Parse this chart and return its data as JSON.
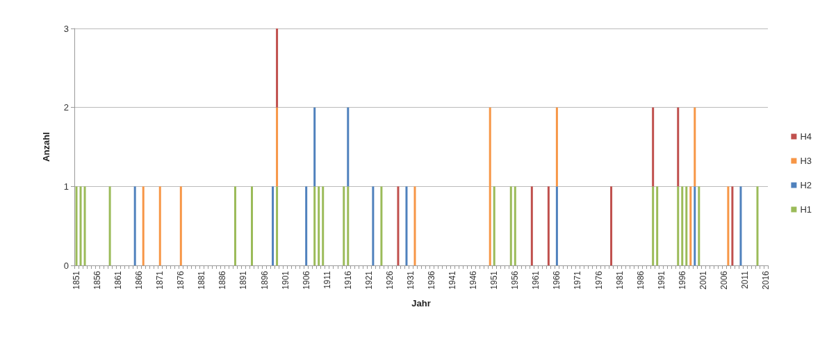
{
  "chart_data": {
    "type": "bar",
    "stacked": true,
    "xlabel": "Jahr",
    "ylabel": "Anzahl",
    "categories": [
      "1851",
      null,
      null,
      null,
      null,
      "1856",
      null,
      null,
      null,
      null,
      "1861",
      null,
      null,
      null,
      null,
      "1866",
      null,
      null,
      null,
      null,
      "1871",
      null,
      null,
      null,
      null,
      "1876",
      null,
      null,
      null,
      null,
      "1881",
      null,
      null,
      null,
      null,
      "1886",
      null,
      null,
      null,
      null,
      "1891",
      null,
      null,
      null,
      null,
      "1896",
      null,
      null,
      null,
      null,
      "1901",
      null,
      null,
      null,
      null,
      "1906",
      null,
      null,
      null,
      null,
      "1911",
      null,
      null,
      null,
      null,
      "1916",
      null,
      null,
      null,
      null,
      "1921",
      null,
      null,
      null,
      null,
      "1926",
      null,
      null,
      null,
      null,
      "1931",
      null,
      null,
      null,
      null,
      "1936",
      null,
      null,
      null,
      null,
      "1941",
      null,
      null,
      null,
      null,
      "1946",
      null,
      null,
      null,
      null,
      "1951",
      null,
      null,
      null,
      null,
      "1956",
      null,
      null,
      null,
      null,
      "1961",
      null,
      null,
      null,
      null,
      "1966",
      null,
      null,
      null,
      null,
      "1971",
      null,
      null,
      null,
      null,
      "1976",
      null,
      null,
      null,
      null,
      "1981",
      null,
      null,
      null,
      null,
      "1986",
      null,
      null,
      null,
      null,
      "1991",
      null,
      null,
      null,
      null,
      "1996",
      null,
      null,
      null,
      null,
      "2001",
      null,
      null,
      null,
      null,
      "2006",
      null,
      null,
      null,
      null,
      "2011",
      null,
      null,
      null,
      null,
      "2016"
    ],
    "series": [
      {
        "name": "H1",
        "color": "#9bbb59",
        "values": [
          1,
          1,
          1,
          0,
          0,
          0,
          0,
          0,
          1,
          0,
          0,
          0,
          0,
          0,
          0,
          0,
          0,
          0,
          0,
          0,
          0,
          0,
          0,
          0,
          0,
          0,
          0,
          0,
          0,
          0,
          0,
          0,
          0,
          0,
          0,
          0,
          0,
          0,
          1,
          0,
          0,
          0,
          1,
          0,
          0,
          0,
          0,
          0,
          1,
          0,
          0,
          0,
          0,
          0,
          0,
          0,
          0,
          1,
          1,
          1,
          0,
          0,
          0,
          0,
          1,
          1,
          0,
          0,
          0,
          0,
          0,
          0,
          0,
          1,
          0,
          0,
          0,
          0,
          0,
          0,
          0,
          0,
          0,
          0,
          0,
          0,
          0,
          0,
          0,
          0,
          0,
          0,
          0,
          0,
          0,
          0,
          0,
          0,
          0,
          0,
          1,
          0,
          0,
          0,
          1,
          1,
          0,
          0,
          0,
          0,
          0,
          0,
          0,
          0,
          0,
          0,
          0,
          0,
          0,
          0,
          0,
          0,
          0,
          0,
          0,
          0,
          0,
          0,
          0,
          0,
          0,
          0,
          0,
          0,
          0,
          0,
          0,
          0,
          1,
          1,
          0,
          0,
          0,
          0,
          1,
          1,
          1,
          0,
          0,
          1,
          0,
          0,
          0,
          0,
          0,
          0,
          0,
          0,
          0,
          0,
          0,
          0,
          0,
          1,
          0,
          0
        ]
      },
      {
        "name": "H2",
        "color": "#4f81bd",
        "values": [
          0,
          0,
          0,
          0,
          0,
          0,
          0,
          0,
          0,
          0,
          0,
          0,
          0,
          0,
          1,
          0,
          0,
          0,
          0,
          0,
          0,
          0,
          0,
          0,
          0,
          0,
          0,
          0,
          0,
          0,
          0,
          0,
          0,
          0,
          0,
          0,
          0,
          0,
          0,
          0,
          0,
          0,
          0,
          0,
          0,
          0,
          0,
          1,
          0,
          0,
          0,
          0,
          0,
          0,
          0,
          1,
          0,
          1,
          0,
          0,
          0,
          0,
          0,
          0,
          0,
          1,
          0,
          0,
          0,
          0,
          0,
          1,
          0,
          0,
          0,
          0,
          0,
          0,
          0,
          1,
          0,
          0,
          0,
          0,
          0,
          0,
          0,
          0,
          0,
          0,
          0,
          0,
          0,
          0,
          0,
          0,
          0,
          0,
          0,
          0,
          0,
          0,
          0,
          0,
          0,
          0,
          0,
          0,
          0,
          0,
          0,
          0,
          0,
          0,
          0,
          1,
          0,
          0,
          0,
          0,
          0,
          0,
          0,
          0,
          0,
          0,
          0,
          0,
          0,
          0,
          0,
          0,
          0,
          0,
          0,
          0,
          0,
          0,
          0,
          0,
          0,
          0,
          0,
          0,
          0,
          0,
          0,
          0,
          1,
          0,
          0,
          0,
          0,
          0,
          0,
          0,
          0,
          0,
          0,
          1,
          0,
          0,
          0,
          0,
          0,
          0
        ]
      },
      {
        "name": "H3",
        "color": "#f79646",
        "values": [
          0,
          0,
          0,
          0,
          0,
          0,
          0,
          0,
          0,
          0,
          0,
          0,
          0,
          0,
          0,
          0,
          1,
          0,
          0,
          0,
          1,
          0,
          0,
          0,
          0,
          1,
          0,
          0,
          0,
          0,
          0,
          0,
          0,
          0,
          0,
          0,
          0,
          0,
          0,
          0,
          0,
          0,
          0,
          0,
          0,
          0,
          0,
          0,
          1,
          0,
          0,
          0,
          0,
          0,
          0,
          0,
          0,
          0,
          0,
          0,
          0,
          0,
          0,
          0,
          0,
          0,
          0,
          0,
          0,
          0,
          0,
          0,
          0,
          0,
          0,
          0,
          0,
          0,
          0,
          0,
          0,
          1,
          0,
          0,
          0,
          0,
          0,
          0,
          0,
          0,
          0,
          0,
          0,
          0,
          0,
          0,
          0,
          0,
          0,
          2,
          0,
          0,
          0,
          0,
          0,
          0,
          0,
          0,
          0,
          0,
          0,
          0,
          0,
          0,
          0,
          1,
          0,
          0,
          0,
          0,
          0,
          0,
          0,
          0,
          0,
          0,
          0,
          0,
          0,
          0,
          0,
          0,
          0,
          0,
          0,
          0,
          0,
          0,
          0,
          0,
          0,
          0,
          0,
          0,
          0,
          0,
          0,
          1,
          1,
          0,
          0,
          0,
          0,
          0,
          0,
          0,
          1,
          0,
          0,
          0,
          0,
          0,
          0,
          0,
          0,
          0
        ]
      },
      {
        "name": "H4",
        "color": "#c0504d",
        "values": [
          0,
          0,
          0,
          0,
          0,
          0,
          0,
          0,
          0,
          0,
          0,
          0,
          0,
          0,
          0,
          0,
          0,
          0,
          0,
          0,
          0,
          0,
          0,
          0,
          0,
          0,
          0,
          0,
          0,
          0,
          0,
          0,
          0,
          0,
          0,
          0,
          0,
          0,
          0,
          0,
          0,
          0,
          0,
          0,
          0,
          0,
          0,
          0,
          1,
          0,
          0,
          0,
          0,
          0,
          0,
          0,
          0,
          0,
          0,
          0,
          0,
          0,
          0,
          0,
          0,
          0,
          0,
          0,
          0,
          0,
          0,
          0,
          0,
          0,
          0,
          0,
          0,
          1,
          0,
          0,
          0,
          0,
          0,
          0,
          0,
          0,
          0,
          0,
          0,
          0,
          0,
          0,
          0,
          0,
          0,
          0,
          0,
          0,
          0,
          0,
          0,
          0,
          0,
          0,
          0,
          0,
          0,
          0,
          0,
          1,
          0,
          0,
          0,
          1,
          0,
          0,
          0,
          0,
          0,
          0,
          0,
          0,
          0,
          0,
          0,
          0,
          0,
          0,
          1,
          0,
          0,
          0,
          0,
          0,
          0,
          0,
          0,
          0,
          1,
          0,
          0,
          0,
          0,
          0,
          1,
          0,
          0,
          0,
          0,
          0,
          0,
          0,
          0,
          0,
          0,
          0,
          0,
          1,
          0,
          0,
          0,
          0,
          0,
          0,
          0,
          0
        ]
      }
    ],
    "ylim": [
      0,
      3
    ],
    "yticks": [
      0,
      1,
      2,
      3
    ],
    "grid": "y",
    "legend": "right"
  }
}
